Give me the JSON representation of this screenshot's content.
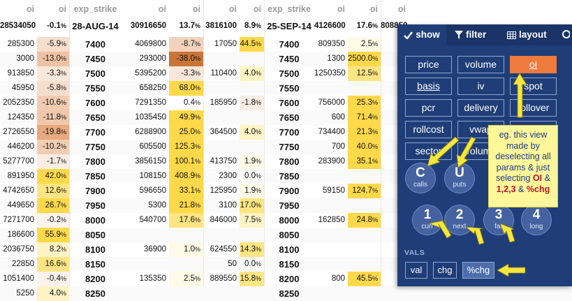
{
  "headers": {
    "oi": "oi",
    "oi_pct": "oi",
    "pct_sign": "%",
    "strike": "exp_strike"
  },
  "groups": [
    {
      "expiry": "28-AUG-14",
      "left_total": "28534050",
      "left_chg": "-0.1",
      "right_total": "30916650",
      "right_chg": "13.7"
    },
    {
      "expiry": "25-SEP-14",
      "left_total": "3816100",
      "left_chg": "8.9",
      "right_total": "4126600",
      "right_chg": "17.6"
    },
    {
      "expiry": "30-OCT-14",
      "left_total": "808850",
      "left_chg": "",
      "right_total": "",
      "right_chg": ""
    }
  ],
  "strikes": [
    "7400",
    "7450",
    "7500",
    "7550",
    "7600",
    "7650",
    "7700",
    "7750",
    "7800",
    "7850",
    "7900",
    "7950",
    "8000",
    "8050",
    "8100",
    "8150",
    "8200",
    "8250"
  ],
  "aug_left": [
    [
      "285300",
      "-5.9"
    ],
    [
      "3000",
      "-13.0"
    ],
    [
      "913850",
      "-3.3"
    ],
    [
      "45950",
      "-5.8"
    ],
    [
      "2052350",
      "-10.6"
    ],
    [
      "124350",
      "-11.8"
    ],
    [
      "2726550",
      "-19.8"
    ],
    [
      "446200",
      "-10.2"
    ],
    [
      "5277700",
      "-1.7"
    ],
    [
      "891950",
      "42.0"
    ],
    [
      "4742650",
      "12.6"
    ],
    [
      "449650",
      "26.7"
    ],
    [
      "7271700",
      "-0.2"
    ],
    [
      "186600",
      "55.9"
    ],
    [
      "2036750",
      "8.2"
    ],
    [
      "22850",
      "16.6"
    ],
    [
      "1051400",
      "-0.4"
    ],
    [
      "5250",
      "4.0"
    ]
  ],
  "aug_right": [
    [
      "4069800",
      "-8.7"
    ],
    [
      "293000",
      "-38.0"
    ],
    [
      "5395200",
      "-3.3"
    ],
    [
      "658250",
      "68.0"
    ],
    [
      "7291350",
      "0.4"
    ],
    [
      "1035450",
      "49.9"
    ],
    [
      "6288900",
      "25.0"
    ],
    [
      "605500",
      "125.3"
    ],
    [
      "3856150",
      "100.1"
    ],
    [
      "108150",
      "408.9"
    ],
    [
      "596650",
      "33.1"
    ],
    [
      "5300",
      "21.8"
    ],
    [
      "540700",
      "17.6"
    ],
    [
      "",
      ""
    ],
    [
      "36900",
      "1.0"
    ],
    [
      "",
      ""
    ],
    [
      "135350",
      "2.5"
    ],
    [
      "",
      ""
    ]
  ],
  "sep_left": [
    [
      "17050",
      "44.5"
    ],
    [
      "",
      ""
    ],
    [
      "110400",
      "4.0"
    ],
    [
      "",
      ""
    ],
    [
      "185950",
      "-1.8"
    ],
    [
      "",
      ""
    ],
    [
      "364500",
      "4.0"
    ],
    [
      "",
      ""
    ],
    [
      "413750",
      "1.9"
    ],
    [
      "2300",
      "0.0"
    ],
    [
      "125950",
      "1.9"
    ],
    [
      "3100",
      "17.0"
    ],
    [
      "846000",
      "7.5"
    ],
    [
      "",
      ""
    ],
    [
      "624550",
      "14.3"
    ],
    [
      "50",
      "0.0"
    ],
    [
      "889550",
      "15.8"
    ],
    [
      "",
      ""
    ]
  ],
  "sep_right": [
    [
      "809350",
      "2.5"
    ],
    [
      "1300",
      "2500.0"
    ],
    [
      "1250350",
      "12.5"
    ],
    [
      "",
      ""
    ],
    [
      "756000",
      "25.3"
    ],
    [
      "600",
      "71.4"
    ],
    [
      "734400",
      "21.3"
    ],
    [
      "700",
      "40.0"
    ],
    [
      "283900",
      "35.1"
    ],
    [
      "",
      ""
    ],
    [
      "59150",
      "124.7"
    ],
    [
      "",
      ""
    ],
    [
      "162850",
      "24.8"
    ],
    [
      "",
      ""
    ],
    [
      "",
      ""
    ],
    [
      "",
      ""
    ],
    [
      "800",
      "45.5"
    ],
    [
      "",
      ""
    ]
  ],
  "panel": {
    "tabs": [
      "show",
      "filter",
      "layout"
    ],
    "buttons": [
      "price",
      "volume",
      "oi",
      "basis",
      "iv",
      "spot",
      "pcr",
      "delivery",
      "rollover",
      "rollcost",
      "vwap",
      "",
      "sector",
      "volume",
      ""
    ],
    "calls": {
      "big": "C",
      "small": "calls"
    },
    "puts": {
      "big": "U",
      "small": "puts"
    },
    "months": [
      {
        "big": "1",
        "small": "curr"
      },
      {
        "big": "2",
        "small": "next"
      },
      {
        "big": "3",
        "small": "far"
      },
      {
        "big": "4",
        "small": "long"
      }
    ],
    "vals_label": "VALS",
    "vals": [
      "val",
      "chg",
      "%chg"
    ]
  },
  "note": {
    "line1": "eg. this view",
    "line2": "made by",
    "line3": "deselecting all",
    "line4": "params & just",
    "line5_pre": "selecting ",
    "line5_b": "OI",
    "line5_post": " &",
    "line6_b1": "1,2,3",
    "line6_mid": " & ",
    "line6_b2": "%chg"
  },
  "colors": {
    "panel": "#1f3e78",
    "selected": "#ee7a3e",
    "note": "#fff79a",
    "arrow": "#f5e63d"
  }
}
